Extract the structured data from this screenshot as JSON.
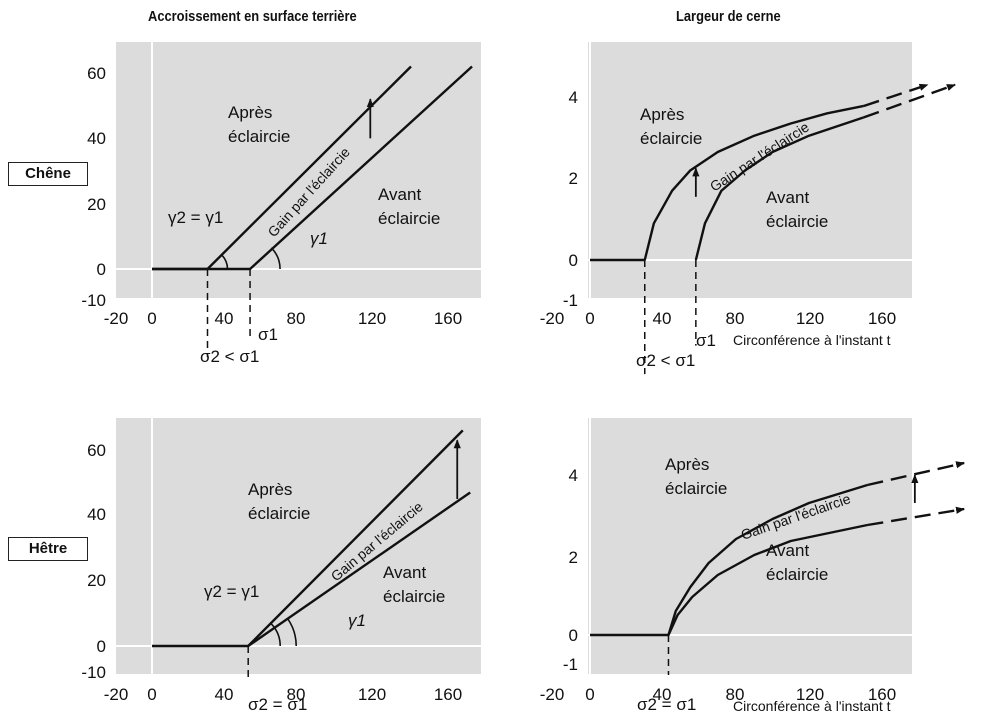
{
  "titles": {
    "left": "Accroissement en surface terrière",
    "right": "Largeur de cerne"
  },
  "species": [
    "Chêne",
    "Hêtre"
  ],
  "colors": {
    "plot_bg": "#dcdcdc",
    "line": "#111111",
    "grid": "#ffffff"
  },
  "chart_data": [
    {
      "type": "line",
      "species": "Chêne",
      "title": "Accroissement en surface terrière",
      "xlim": [
        -20,
        180
      ],
      "ylim": [
        -10,
        68
      ],
      "xticks": [
        -20,
        0,
        40,
        80,
        120,
        160
      ],
      "yticks": [
        -10,
        0,
        20,
        40,
        60
      ],
      "x_tick_labels": [
        "-20",
        "0",
        "40",
        "80",
        "120",
        "160"
      ],
      "y_tick_labels": [
        "-10",
        "0",
        "20",
        "40",
        "60"
      ],
      "series": [
        {
          "dashed_after": null,
          "arrow": false,
          "points": [
            [
              0,
              0
            ],
            [
              30,
              0
            ],
            [
              140,
              62
            ]
          ]
        },
        {
          "dashed_after": null,
          "arrow": false,
          "points": [
            [
              0,
              0
            ],
            [
              53,
              0
            ],
            [
              173,
              62
            ]
          ]
        }
      ],
      "gain_arrow": {
        "x": 118,
        "from": 40,
        "to": 52
      },
      "sigma_markers": [
        {
          "x": 30,
          "y_end": -27
        },
        {
          "x": 53,
          "y_end": -21
        }
      ],
      "angle_arcs": [
        {
          "x": 30,
          "radius": 20
        },
        {
          "x": 53,
          "radius": 30
        }
      ],
      "texts": {
        "apres": [
          "Après",
          "éclaircie"
        ],
        "avant": [
          "Avant",
          "éclaircie"
        ],
        "gain": "Gain par l'éclaircie",
        "gamma_eq": "γ2 = γ1",
        "gamma1": "γ1",
        "sigma1": "σ1",
        "sigma_cond": "σ2 < σ1"
      }
    },
    {
      "type": "line",
      "species": "Chêne",
      "title": "Largeur de cerne",
      "xlabel": "Circonférence à l'instant t",
      "xlim": [
        -20,
        180
      ],
      "ylim": [
        -1,
        5.3
      ],
      "xticks": [
        -20,
        0,
        40,
        80,
        120,
        160
      ],
      "yticks": [
        -1,
        0,
        2,
        4
      ],
      "x_tick_labels": [
        "-20",
        "0",
        "40",
        "80",
        "120",
        "160"
      ],
      "y_tick_labels": [
        "-1",
        "0",
        "2",
        "4"
      ],
      "series": [
        {
          "dashed_after": 150,
          "arrow": true,
          "points": [
            [
              0,
              0
            ],
            [
              30,
              0
            ],
            [
              35,
              0.9
            ],
            [
              45,
              1.7
            ],
            [
              55,
              2.2
            ],
            [
              70,
              2.65
            ],
            [
              90,
              3.05
            ],
            [
              110,
              3.35
            ],
            [
              130,
              3.6
            ],
            [
              150,
              3.78
            ],
            [
              185,
              4.3
            ]
          ]
        },
        {
          "dashed_after": 150,
          "arrow": true,
          "points": [
            [
              58,
              0
            ],
            [
              63,
              0.9
            ],
            [
              72,
              1.7
            ],
            [
              85,
              2.2
            ],
            [
              100,
              2.65
            ],
            [
              120,
              3.05
            ],
            [
              150,
              3.5
            ],
            [
              200,
              4.3
            ]
          ]
        }
      ],
      "gain_arrow": {
        "x": 58,
        "from": 1.55,
        "to": 2.25
      },
      "sigma_markers": [
        {
          "x": 30,
          "y_end": -2.8
        },
        {
          "x": 58,
          "y_end": -2.1
        }
      ],
      "texts": {
        "apres": [
          "Après",
          "éclaircie"
        ],
        "avant": [
          "Avant",
          "éclaircie"
        ],
        "gain": "Gain par l'éclaircie",
        "sigma1": "σ1",
        "sigma_cond": "σ2 < σ1"
      }
    },
    {
      "type": "line",
      "species": "Hêtre",
      "title": "Accroissement en surface terrière",
      "xlim": [
        -20,
        180
      ],
      "ylim": [
        -10,
        70
      ],
      "xticks": [
        -20,
        0,
        40,
        80,
        120,
        160
      ],
      "yticks": [
        -10,
        0,
        20,
        40,
        60
      ],
      "x_tick_labels": [
        "-20",
        "0",
        "40",
        "80",
        "120",
        "160"
      ],
      "y_tick_labels": [
        "-10",
        "0",
        "20",
        "40",
        "60"
      ],
      "series": [
        {
          "dashed_after": null,
          "arrow": false,
          "points": [
            [
              0,
              0
            ],
            [
              52,
              0
            ],
            [
              168,
              66
            ]
          ]
        },
        {
          "dashed_after": null,
          "arrow": false,
          "points": [
            [
              52,
              0
            ],
            [
              172,
              47
            ]
          ]
        }
      ],
      "gain_arrow": {
        "x": 165,
        "from": 45,
        "to": 63
      },
      "sigma_markers": [
        {
          "x": 52,
          "y_end": -10
        }
      ],
      "angle_arcs": [
        {
          "x": 52,
          "radius": 32
        },
        {
          "x": 52,
          "radius": 48
        }
      ],
      "texts": {
        "apres": [
          "Après",
          "éclaircie"
        ],
        "avant": [
          "Avant",
          "éclaircie"
        ],
        "gain": "Gain par l'éclaircie",
        "gamma_eq": "γ2 = γ1",
        "gamma1": "γ1",
        "sigma_cond": "σ2 = σ1"
      }
    },
    {
      "type": "line",
      "species": "Hêtre",
      "title": "Largeur de cerne",
      "xlabel": "Circonférence à l'instant t",
      "xlim": [
        -20,
        180
      ],
      "ylim": [
        -1,
        5.3
      ],
      "xticks": [
        -20,
        0,
        40,
        80,
        120,
        160
      ],
      "yticks": [
        -1,
        0,
        2,
        4
      ],
      "x_tick_labels": [
        "-20",
        "0",
        "40",
        "80",
        "120",
        "160"
      ],
      "y_tick_labels": [
        "-1",
        "0",
        "2",
        "4"
      ],
      "series": [
        {
          "dashed_after": 152,
          "arrow": true,
          "points": [
            [
              0,
              0
            ],
            [
              43,
              0
            ],
            [
              47,
              0.6
            ],
            [
              55,
              1.2
            ],
            [
              65,
              1.8
            ],
            [
              80,
              2.4
            ],
            [
              100,
              2.9
            ],
            [
              120,
              3.3
            ],
            [
              152,
              3.75
            ],
            [
              205,
              4.3
            ]
          ]
        },
        {
          "dashed_after": 152,
          "arrow": true,
          "points": [
            [
              43,
              0
            ],
            [
              48,
              0.5
            ],
            [
              56,
              0.95
            ],
            [
              70,
              1.5
            ],
            [
              90,
              2.0
            ],
            [
              110,
              2.35
            ],
            [
              152,
              2.75
            ],
            [
              205,
              3.15
            ]
          ]
        }
      ],
      "gain_arrow": {
        "x": 178,
        "from": 3.3,
        "to": 4.0
      },
      "sigma_markers": [
        {
          "x": 43,
          "y_end": -1
        }
      ],
      "texts": {
        "apres": [
          "Après",
          "éclaircie"
        ],
        "avant": [
          "Avant",
          "éclaircie"
        ],
        "gain": "Gain par l'éclaircie",
        "sigma_cond": "σ2 = σ1"
      }
    }
  ]
}
